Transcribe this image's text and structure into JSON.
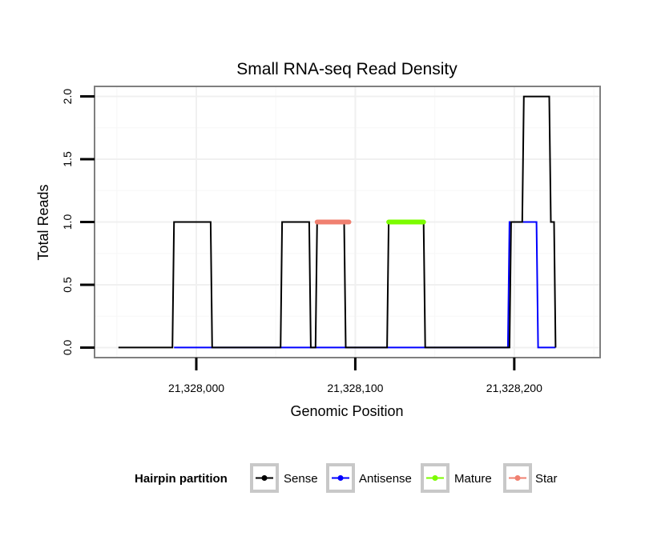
{
  "chart_data": {
    "type": "line",
    "title": "Small RNA-seq Read Density",
    "xlabel": "Genomic Position",
    "ylabel": "Total Reads",
    "xlim": [
      21327936,
      21328254
    ],
    "ylim": [
      -0.08,
      2.08
    ],
    "x_ticks": [
      21328000,
      21328100,
      21328200
    ],
    "x_tick_labels": [
      "21,328,000",
      "21,328,100",
      "21,328,200"
    ],
    "y_ticks": [
      0,
      0.5,
      1,
      1.5,
      2
    ],
    "y_tick_labels": [
      "0.0",
      "0.5",
      "1.0",
      "1.5",
      "2.0"
    ],
    "grid": true,
    "legend": {
      "title": "Hairpin partition",
      "position": "bottom",
      "entries": [
        "Sense",
        "Antisense",
        "Mature",
        "Star"
      ]
    },
    "series": [
      {
        "name": "Sense",
        "color": "#000000",
        "points": [
          [
            21327951,
            0
          ],
          [
            21327985,
            0
          ],
          [
            21327986,
            1
          ],
          [
            21328009,
            1
          ],
          [
            21328010,
            0
          ],
          [
            21328053,
            0
          ],
          [
            21328054,
            1
          ],
          [
            21328071,
            1
          ],
          [
            21328072,
            0
          ],
          [
            21328075,
            0
          ],
          [
            21328076,
            1
          ],
          [
            21328093,
            1
          ],
          [
            21328094,
            0
          ],
          [
            21328120,
            0
          ],
          [
            21328121,
            1
          ],
          [
            21328143,
            1
          ],
          [
            21328144,
            0
          ],
          [
            21328197,
            0
          ],
          [
            21328198,
            1
          ],
          [
            21328205,
            1
          ],
          [
            21328206,
            2
          ],
          [
            21328222,
            2
          ],
          [
            21328223,
            1
          ],
          [
            21328225,
            1
          ],
          [
            21328226,
            0
          ]
        ]
      },
      {
        "name": "Antisense",
        "color": "#0000ff",
        "points": [
          [
            21327986,
            0
          ],
          [
            21328196,
            0
          ],
          [
            21328197,
            1
          ],
          [
            21328214,
            1
          ],
          [
            21328215,
            0
          ],
          [
            21328226,
            0
          ]
        ]
      },
      {
        "name": "Mature",
        "color": "#7cfc00",
        "points": [
          [
            21328121,
            1
          ],
          [
            21328143,
            1
          ]
        ]
      },
      {
        "name": "Star",
        "color": "#f08070",
        "points": [
          [
            21328076,
            1
          ],
          [
            21328096,
            1
          ]
        ]
      }
    ]
  }
}
